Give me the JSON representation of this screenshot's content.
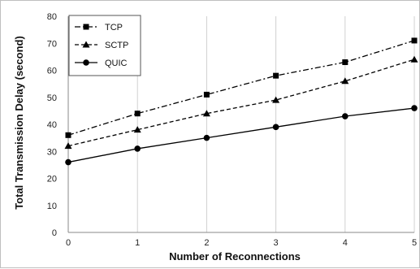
{
  "chart_data": {
    "type": "line",
    "title": "",
    "xlabel": "Number of Reconnections",
    "ylabel": "Total Transmission Delay (second)",
    "x": [
      0,
      1,
      2,
      3,
      4,
      5
    ],
    "xlim": [
      0,
      5
    ],
    "ylim": [
      0,
      80
    ],
    "yticks": [
      0,
      10,
      20,
      30,
      40,
      50,
      60,
      70,
      80
    ],
    "grid": "vertical",
    "legend_position": "top-left",
    "series": [
      {
        "name": "TCP",
        "values": [
          36,
          44,
          51,
          58,
          63,
          71
        ],
        "marker": "square",
        "line_style": "dash-dot",
        "color": "#000000"
      },
      {
        "name": "SCTP",
        "values": [
          32,
          38,
          44,
          49,
          56,
          64
        ],
        "marker": "triangle",
        "line_style": "dashed",
        "color": "#000000"
      },
      {
        "name": "QUIC",
        "values": [
          26,
          31,
          35,
          39,
          43,
          46
        ],
        "marker": "circle",
        "line_style": "solid",
        "color": "#000000"
      }
    ]
  }
}
